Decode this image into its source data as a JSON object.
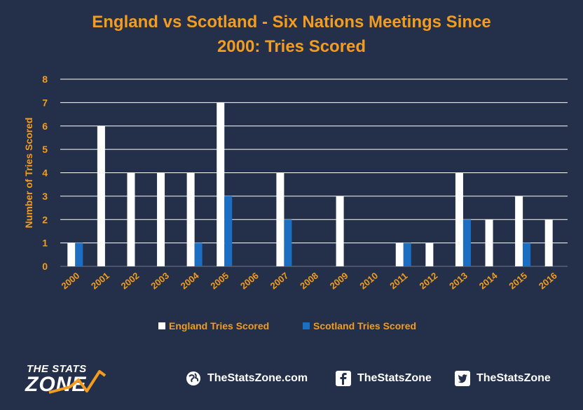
{
  "chart_data": {
    "type": "bar",
    "title_lines": [
      "England vs Scotland - Six Nations Meetings Since",
      "2000: Tries Scored"
    ],
    "xlabel": "",
    "ylabel": "Number of Tries Scored",
    "ylim": [
      0,
      8
    ],
    "yticks": [
      0,
      1,
      2,
      3,
      4,
      5,
      6,
      7,
      8
    ],
    "grid": true,
    "legend_position": "bottom",
    "categories": [
      "2000",
      "2001",
      "2002",
      "2003",
      "2004",
      "2005",
      "2006",
      "2007",
      "2008",
      "2009",
      "2010",
      "2011",
      "2012",
      "2013",
      "2014",
      "2015",
      "2016"
    ],
    "series": [
      {
        "name": "England Tries Scored",
        "color": "#FFFFFF",
        "values": [
          1,
          6,
          4,
          4,
          4,
          7,
          0,
          4,
          0,
          3,
          0,
          1,
          1,
          4,
          2,
          3,
          2
        ]
      },
      {
        "name": "Scotland Tries Scored",
        "color": "#1B6EC2",
        "values": [
          1,
          0,
          0,
          0,
          1,
          3,
          0,
          2,
          0,
          0,
          0,
          1,
          0,
          2,
          0,
          1,
          0
        ]
      }
    ]
  },
  "colors": {
    "background": "#243049",
    "title": "#F39C1F",
    "axis_text": "#F39C1F",
    "gridline": "#FFFFFF"
  },
  "footer": {
    "logo_top": "THE STATS",
    "logo_main": "ZONE",
    "logo_icon": "stats-zone-swoosh-icon",
    "website": "TheStatsZone.com",
    "website_icon": "globe-icon",
    "facebook": "TheStatsZone",
    "facebook_icon": "facebook-icon",
    "twitter": "TheStatsZone",
    "twitter_icon": "twitter-icon"
  }
}
